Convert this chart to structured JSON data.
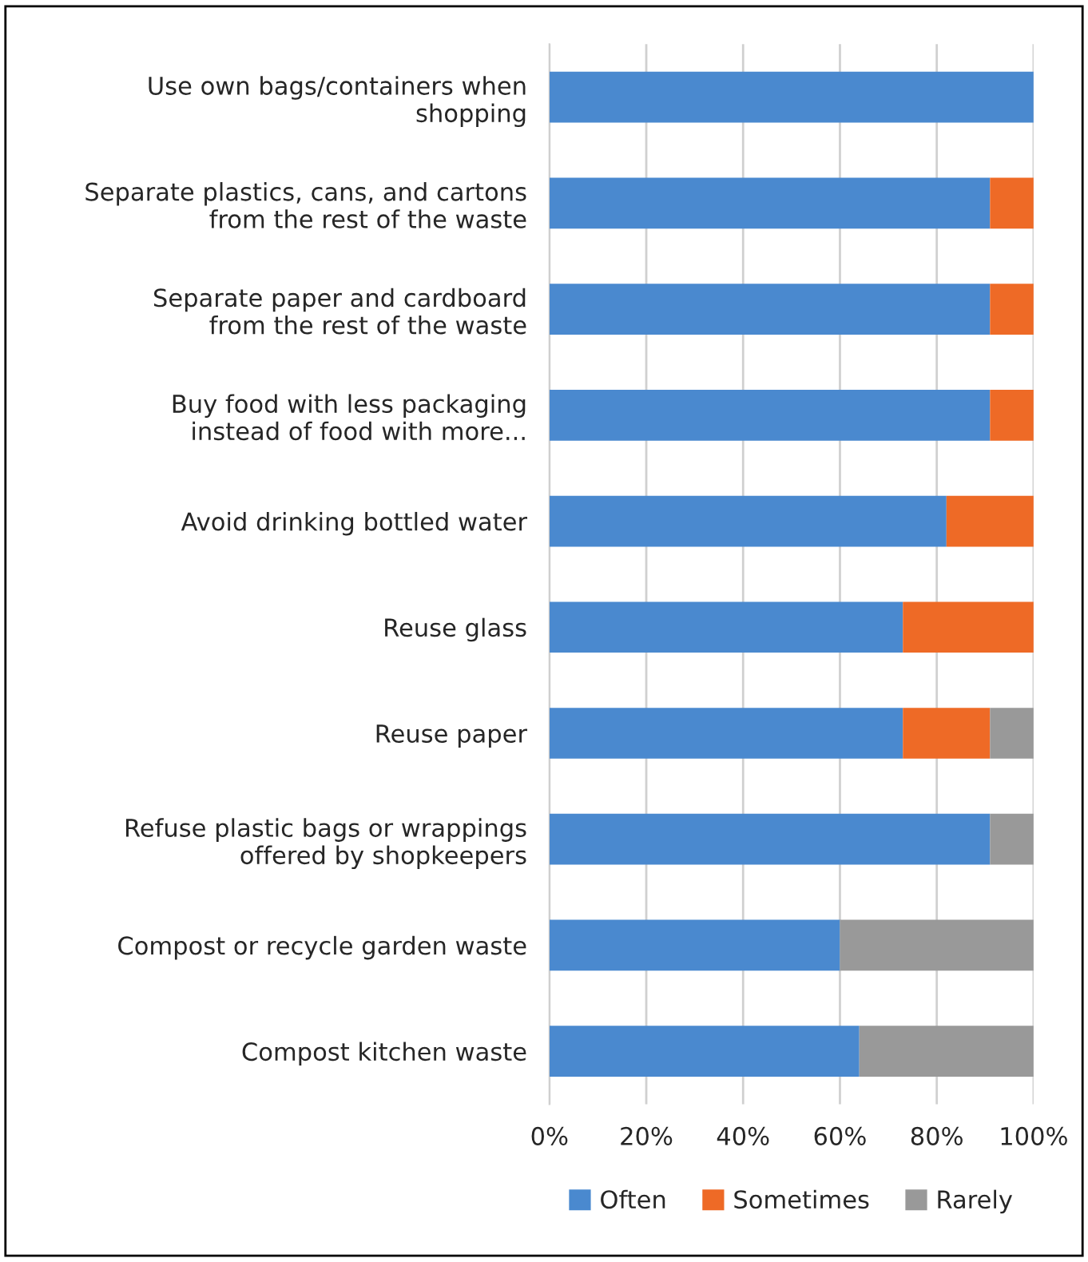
{
  "chart_data": {
    "type": "bar",
    "orientation": "horizontal",
    "stacked": true,
    "categories": [
      "Use own bags/containers when\nshopping",
      "Separate plastics, cans, and cartons\nfrom the rest of the waste",
      "Separate paper and cardboard\nfrom the rest of the waste",
      "Buy food with less packaging\ninstead of food with more...",
      "Avoid drinking bottled water",
      "Reuse glass",
      "Reuse paper",
      "Refuse plastic bags or wrappings\noffered by shopkeepers",
      "Compost or recycle garden waste",
      "Compost kitchen waste"
    ],
    "series": [
      {
        "name": "Often",
        "color": "#4a89cf",
        "values": [
          100,
          91,
          91,
          91,
          82,
          73,
          73,
          91,
          60,
          64
        ]
      },
      {
        "name": "Sometimes",
        "color": "#ee6a26",
        "values": [
          0,
          9,
          9,
          9,
          18,
          27,
          18,
          0,
          0,
          0
        ]
      },
      {
        "name": "Rarely",
        "color": "#999999",
        "values": [
          0,
          0,
          0,
          0,
          0,
          0,
          9,
          9,
          40,
          36
        ]
      }
    ],
    "xlim": [
      0,
      100
    ],
    "xticks": [
      {
        "value": 0,
        "label": "0%"
      },
      {
        "value": 20,
        "label": "20%"
      },
      {
        "value": 40,
        "label": "40%"
      },
      {
        "value": 60,
        "label": "60%"
      },
      {
        "value": 80,
        "label": "80%"
      },
      {
        "value": 100,
        "label": "100%"
      }
    ],
    "grid": "x",
    "legend": "bottom"
  }
}
